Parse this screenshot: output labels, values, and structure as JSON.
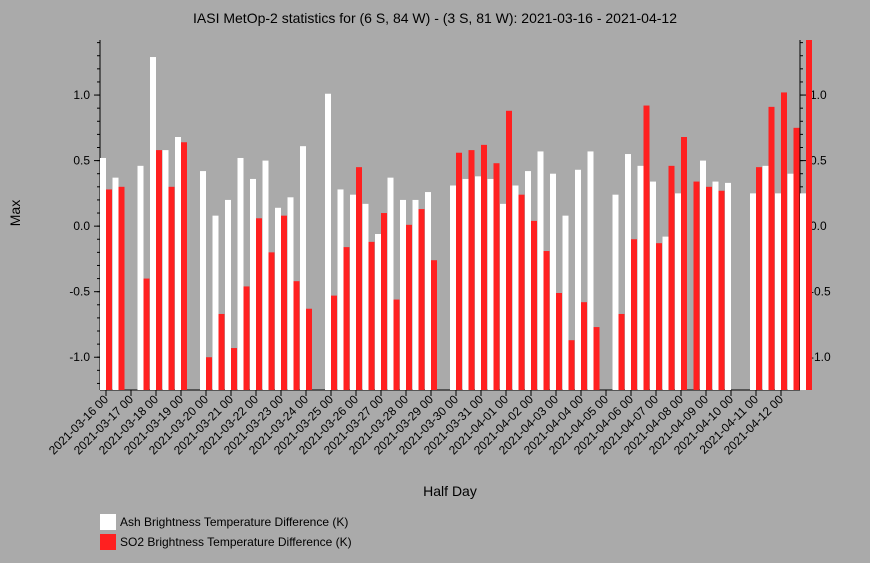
{
  "chart_data": {
    "type": "bar",
    "title": "IASI MetOp-2 statistics for (6 S, 84 W) - (3 S, 81 W): 2021-03-16 - 2021-04-12",
    "xlabel": "Half Day",
    "ylabel": "Max",
    "ylim": [
      -1.25,
      1.42
    ],
    "yticks": [
      -1.0,
      -0.5,
      0.0,
      0.5,
      1.0
    ],
    "ytick_labels": [
      "-1.0",
      "-0.5",
      "0.0",
      "0.5",
      "1.0"
    ],
    "tick_labels": [
      "2021-03-16 00",
      "2021-03-17 00",
      "2021-03-18 00",
      "2021-03-19 00",
      "2021-03-20 00",
      "2021-03-21 00",
      "2021-03-22 00",
      "2021-03-23 00",
      "2021-03-24 00",
      "2021-03-25 00",
      "2021-03-26 00",
      "2021-03-27 00",
      "2021-03-28 00",
      "2021-03-29 00",
      "2021-03-30 00",
      "2021-03-31 00",
      "2021-04-01 00",
      "2021-04-02 00",
      "2021-04-03 00",
      "2021-04-04 00",
      "2021-04-05 00",
      "2021-04-06 00",
      "2021-04-07 00",
      "2021-04-08 00",
      "2021-04-09 00",
      "2021-04-10 00",
      "2021-04-11 00",
      "2021-04-12 00"
    ],
    "legend_position": "bottom-left",
    "series": [
      {
        "name": "Ash Brightness Temperature Difference (K)",
        "color": "#ffffff",
        "values": [
          0.52,
          0.37,
          null,
          0.46,
          1.29,
          0.58,
          0.68,
          null,
          0.42,
          0.08,
          0.2,
          0.52,
          0.36,
          0.5,
          0.14,
          0.22,
          0.61,
          null,
          1.01,
          0.28,
          0.24,
          0.17,
          -0.06,
          0.37,
          0.2,
          0.2,
          0.26,
          null,
          0.31,
          0.36,
          0.38,
          0.36,
          0.17,
          0.31,
          0.42,
          0.57,
          0.4,
          0.08,
          0.43,
          0.57,
          null,
          0.24,
          0.55,
          0.46,
          0.34,
          -0.08,
          0.25,
          null,
          0.5,
          0.34,
          0.33,
          null,
          0.25,
          0.46,
          0.25,
          0.4,
          0.25
        ]
      },
      {
        "name": "SO2 Brightness Temperature Difference (K)",
        "color": "#ff2020",
        "values": [
          0.28,
          0.3,
          null,
          -0.4,
          0.58,
          0.3,
          0.64,
          null,
          -1.0,
          -0.67,
          -0.93,
          -0.46,
          0.06,
          -0.2,
          0.08,
          -0.42,
          -0.63,
          null,
          -0.53,
          -0.16,
          0.45,
          -0.12,
          0.1,
          -0.56,
          0.01,
          0.13,
          -0.26,
          null,
          0.56,
          0.58,
          0.62,
          0.48,
          0.88,
          0.24,
          0.04,
          -0.19,
          -0.51,
          -0.87,
          -0.58,
          -0.77,
          null,
          -0.67,
          -0.1,
          0.92,
          -0.13,
          0.46,
          0.68,
          0.34,
          0.3,
          0.27,
          null,
          null,
          0.45,
          0.91,
          1.02,
          0.75,
          1.42
        ]
      }
    ]
  }
}
